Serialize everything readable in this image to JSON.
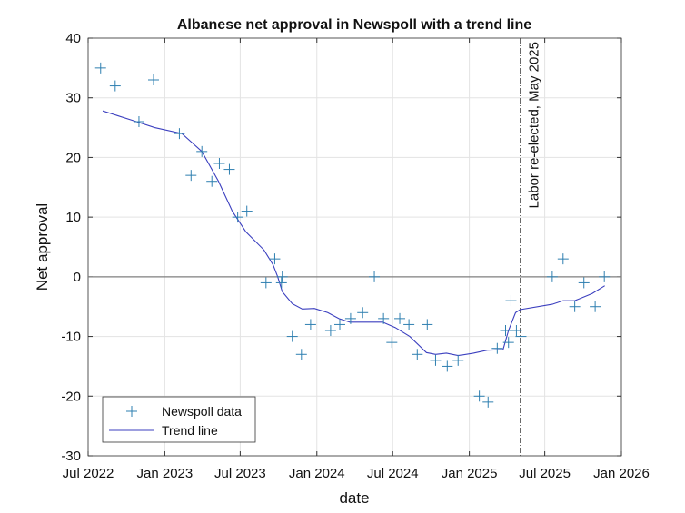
{
  "chart_data": {
    "type": "scatter",
    "title": "Albanese net approval in Newspoll with a trend line",
    "xlabel": "date",
    "ylabel": "Net approval",
    "xlim": [
      "2022-07-01",
      "2026-01-01"
    ],
    "ylim": [
      -30,
      40
    ],
    "grid": true,
    "legend_placement": "bottom-left",
    "xticks": [
      {
        "date": "2022-07-01",
        "label": "Jul 2022"
      },
      {
        "date": "2023-01-01",
        "label": "Jan 2023"
      },
      {
        "date": "2023-07-01",
        "label": "Jul 2023"
      },
      {
        "date": "2024-01-01",
        "label": "Jan 2024"
      },
      {
        "date": "2024-07-01",
        "label": "Jul 2024"
      },
      {
        "date": "2025-01-01",
        "label": "Jan 2025"
      },
      {
        "date": "2025-07-01",
        "label": "Jul 2025"
      },
      {
        "date": "2026-01-01",
        "label": "Jan 2026"
      }
    ],
    "yticks": [
      -30,
      -20,
      -10,
      0,
      10,
      20,
      30,
      40
    ],
    "colors": {
      "points": "#2e7fb0",
      "trend": "#3b3fbf",
      "zero_line": "#808080"
    },
    "annotation": {
      "date": "2025-05-03",
      "text": "Labor re-elected, May 2025"
    },
    "series": [
      {
        "name": "Newspoll data",
        "marker": "+",
        "points": [
          [
            "2022-07-31",
            35
          ],
          [
            "2022-09-04",
            32
          ],
          [
            "2022-10-31",
            26
          ],
          [
            "2022-12-05",
            33
          ],
          [
            "2023-02-05",
            24
          ],
          [
            "2023-03-05",
            17
          ],
          [
            "2023-03-31",
            21
          ],
          [
            "2023-04-24",
            16
          ],
          [
            "2023-05-12",
            19
          ],
          [
            "2023-06-05",
            18
          ],
          [
            "2023-06-25",
            10
          ],
          [
            "2023-07-17",
            11
          ],
          [
            "2023-09-01",
            -1
          ],
          [
            "2023-09-22",
            3
          ],
          [
            "2023-10-08",
            -1
          ],
          [
            "2023-10-10",
            0
          ],
          [
            "2023-11-03",
            -10
          ],
          [
            "2023-11-25",
            -13
          ],
          [
            "2023-12-17",
            -8
          ],
          [
            "2024-02-03",
            -9
          ],
          [
            "2024-02-25",
            -8
          ],
          [
            "2024-03-22",
            -7
          ],
          [
            "2024-04-20",
            -6
          ],
          [
            "2024-05-18",
            0
          ],
          [
            "2024-06-09",
            -7
          ],
          [
            "2024-06-29",
            -11
          ],
          [
            "2024-07-18",
            -7
          ],
          [
            "2024-08-09",
            -8
          ],
          [
            "2024-08-29",
            -13
          ],
          [
            "2024-09-22",
            -8
          ],
          [
            "2024-10-12",
            -14
          ],
          [
            "2024-11-09",
            -15
          ],
          [
            "2024-12-05",
            -14
          ],
          [
            "2025-01-25",
            -20
          ],
          [
            "2025-02-15",
            -21
          ],
          [
            "2025-03-09",
            -12
          ],
          [
            "2025-03-29",
            -9
          ],
          [
            "2025-04-05",
            -11
          ],
          [
            "2025-04-11",
            -4
          ],
          [
            "2025-04-24",
            -9
          ],
          [
            "2025-05-05",
            -10
          ],
          [
            "2025-07-19",
            0
          ],
          [
            "2025-08-14",
            3
          ],
          [
            "2025-09-11",
            -5
          ],
          [
            "2025-10-03",
            -1
          ],
          [
            "2025-10-30",
            -5
          ],
          [
            "2025-11-21",
            0
          ]
        ]
      },
      {
        "name": "Trend line",
        "marker": "line",
        "points": [
          [
            "2022-08-05",
            27.8
          ],
          [
            "2022-10-25",
            26
          ],
          [
            "2022-12-08",
            25
          ],
          [
            "2023-02-11",
            24
          ],
          [
            "2023-03-31",
            21
          ],
          [
            "2023-05-10",
            16
          ],
          [
            "2023-06-12",
            11
          ],
          [
            "2023-07-15",
            7.5
          ],
          [
            "2023-08-27",
            4.5
          ],
          [
            "2023-09-18",
            2
          ],
          [
            "2023-09-29",
            0
          ],
          [
            "2023-10-10",
            -2.5
          ],
          [
            "2023-11-03",
            -4.5
          ],
          [
            "2023-11-27",
            -5.4
          ],
          [
            "2023-12-26",
            -5.3
          ],
          [
            "2024-01-27",
            -6
          ],
          [
            "2024-02-23",
            -7
          ],
          [
            "2024-03-20",
            -7.6
          ],
          [
            "2024-06-07",
            -7.6
          ],
          [
            "2024-07-07",
            -8.5
          ],
          [
            "2024-08-11",
            -10
          ],
          [
            "2024-09-20",
            -12.7
          ],
          [
            "2024-10-12",
            -13
          ],
          [
            "2024-11-07",
            -12.8
          ],
          [
            "2024-12-05",
            -13.2
          ],
          [
            "2025-01-11",
            -12.8
          ],
          [
            "2025-02-13",
            -12.3
          ],
          [
            "2025-03-23",
            -12.2
          ],
          [
            "2025-04-05",
            -9
          ],
          [
            "2025-04-22",
            -6
          ],
          [
            "2025-05-03",
            -5.5
          ],
          [
            "2025-07-19",
            -4.6
          ],
          [
            "2025-08-14",
            -4
          ],
          [
            "2025-09-11",
            -4
          ],
          [
            "2025-10-23",
            -2.8
          ],
          [
            "2025-11-22",
            -1.5
          ]
        ]
      }
    ]
  }
}
